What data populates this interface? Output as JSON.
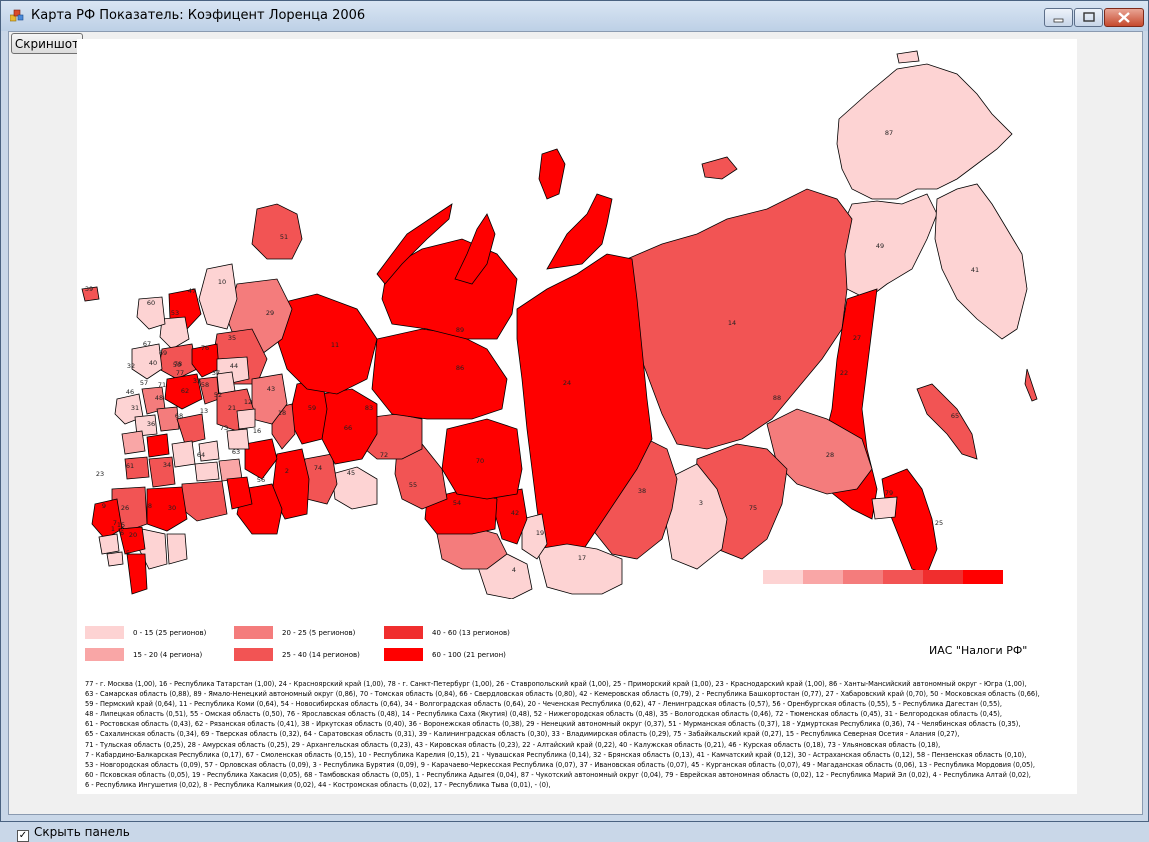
{
  "window": {
    "title": "Карта РФ Показатель: Коэфицент Лоренца 2006"
  },
  "toolbar": {
    "screenshot_label": "Скриншот"
  },
  "footer": {
    "hide_panel_label": "Скрыть панель",
    "hide_panel_checked": true
  },
  "map": {
    "source_label": "ИАС \"Налоги РФ\"",
    "gradient_colors": [
      "#fdd3d3",
      "#f9a6a6",
      "#f47c7c",
      "#f25454",
      "#f02e2e",
      "#ff0000"
    ],
    "region_numbers": [
      "87",
      "49",
      "41",
      "14",
      "22",
      "65",
      "28",
      "79",
      "27",
      "25",
      "24",
      "88",
      "38",
      "3",
      "75",
      "17",
      "19",
      "4",
      "42",
      "54",
      "70",
      "86",
      "72",
      "55",
      "45",
      "74",
      "2",
      "56",
      "18",
      "89",
      "66",
      "11",
      "83",
      "29",
      "51",
      "10",
      "47",
      "60",
      "53",
      "67",
      "35",
      "76",
      "32",
      "40",
      "57",
      "58",
      "33",
      "37",
      "44",
      "43",
      "50",
      "69",
      "46",
      "71",
      "48",
      "68",
      "36",
      "31",
      "13",
      "21",
      "12",
      "73",
      "63",
      "64",
      "52",
      "61",
      "34",
      "8",
      "30",
      "1",
      "9",
      "26",
      "7",
      "6",
      "5",
      "16",
      "15",
      "20",
      "62",
      "39",
      "59",
      "23",
      "77",
      "78"
    ]
  },
  "legend": {
    "items": [
      {
        "label": "0 - 15  (25 регионов)",
        "color": "#fdd3d3"
      },
      {
        "label": "15 - 20  (4 региона)",
        "color": "#f9a6a6"
      },
      {
        "label": "20 - 25  (5 регионов)",
        "color": "#f47c7c"
      },
      {
        "label": "25 - 40  (14 регионов)",
        "color": "#f25454"
      },
      {
        "label": "40 - 60  (13 регионов)",
        "color": "#f02e2e"
      },
      {
        "label": "60 - 100  (21 регион)",
        "color": "#ff0000"
      }
    ]
  },
  "region_list": {
    "lines": [
      "77 - г. Москва (1,00), 16 - Республика Татарстан (1,00), 24 - Красноярский край (1,00), 78 - г. Санкт-Петербург (1,00), 26 - Ставропольский край (1,00), 25 - Приморский край (1,00), 23 - Краснодарский край (1,00), 86 - Ханты-Мансийский автономный округ - Югра (1,00),",
      "63 - Самарская область (0,88), 89 - Ямало-Ненецкий автономный округ (0,86), 70 - Томская область (0,84), 66 - Свердловская область (0,80), 42 - Кемеровская область (0,79), 2 - Республика Башкортостан (0,77), 27 - Хабаровский край (0,70), 50 - Московская область (0,66),",
      "59 - Пермский край (0,64), 11 - Республика Коми (0,64), 54 - Новосибирская область (0,64), 34 - Волгоградская область (0,64), 20 - Чеченская Республика (0,62), 47 - Ленинградская область (0,57), 56 - Оренбургская область (0,55), 5 - Республика Дагестан (0,55),",
      "48 - Липецкая область (0,51), 55 - Омская область (0,50), 76 - Ярославская область (0,48), 14 - Республика Саха (Якутия) (0,48), 52 - Нижегородская область (0,48), 35 - Вологодская область (0,46), 72 - Тюменская область (0,45), 31 - Белгородская область (0,45),",
      "61 - Ростовская область (0,43), 62 - Рязанская область (0,41), 38 - Иркутская область (0,40), 36 - Воронежская область (0,38), 29 - Ненецкий автономный округ (0,37), 51 - Мурманская область (0,37), 18 - Удмуртская Республика (0,36), 74 - Челябинская область (0,35),",
      "65 - Сахалинская область (0,34), 69 - Тверская область (0,32), 64 - Саратовская область (0,31), 39 - Калининградская область (0,30), 33 - Владимирская область (0,29), 75 - Забайкальский край (0,27), 15 - Республика Северная Осетия - Алания (0,27),",
      "71 - Тульская область (0,25), 28 - Амурская область (0,25), 29 - Архангельская область (0,23), 43 - Кировская область (0,23), 22 - Алтайский край (0,22), 40 - Калужская область (0,21), 46 - Курская область (0,18), 73 - Ульяновская область (0,18),",
      "7 - Кабардино-Балкарская Республика (0,17), 67 - Смоленская область (0,15), 10 - Республика Карелия (0,15), 21 - Чувашская Республика (0,14), 32 - Брянская область (0,13), 41 - Камчатский край (0,12), 30 - Астраханская область (0,12), 58 - Пензенская область (0,10),",
      "53 - Новгородская область (0,09), 57 - Орловская область (0,09), 3 - Республика Бурятия (0,09), 9 - Карачаево-Черкесская Республика (0,07), 37 - Ивановская область (0,07), 45 - Курганская область (0,07), 49 - Магаданская область (0,06), 13 - Республика Мордовия (0,05),",
      "60 - Псковская область (0,05), 19 - Республика Хакасия (0,05), 68 - Тамбовская область (0,05), 1 - Республика Адыгея (0,04), 87 - Чукотский автономный округ (0,04), 79 - Еврейская автономная область (0,02), 12 - Республика Марий Эл (0,02), 4 - Республика Алтай (0,02),",
      "6 - Республика Ингушетия (0,02), 8 - Республика Калмыкия (0,02), 44 - Костромская область (0,02), 17 - Республика Тыва (0,01),  -  (0),"
    ]
  }
}
